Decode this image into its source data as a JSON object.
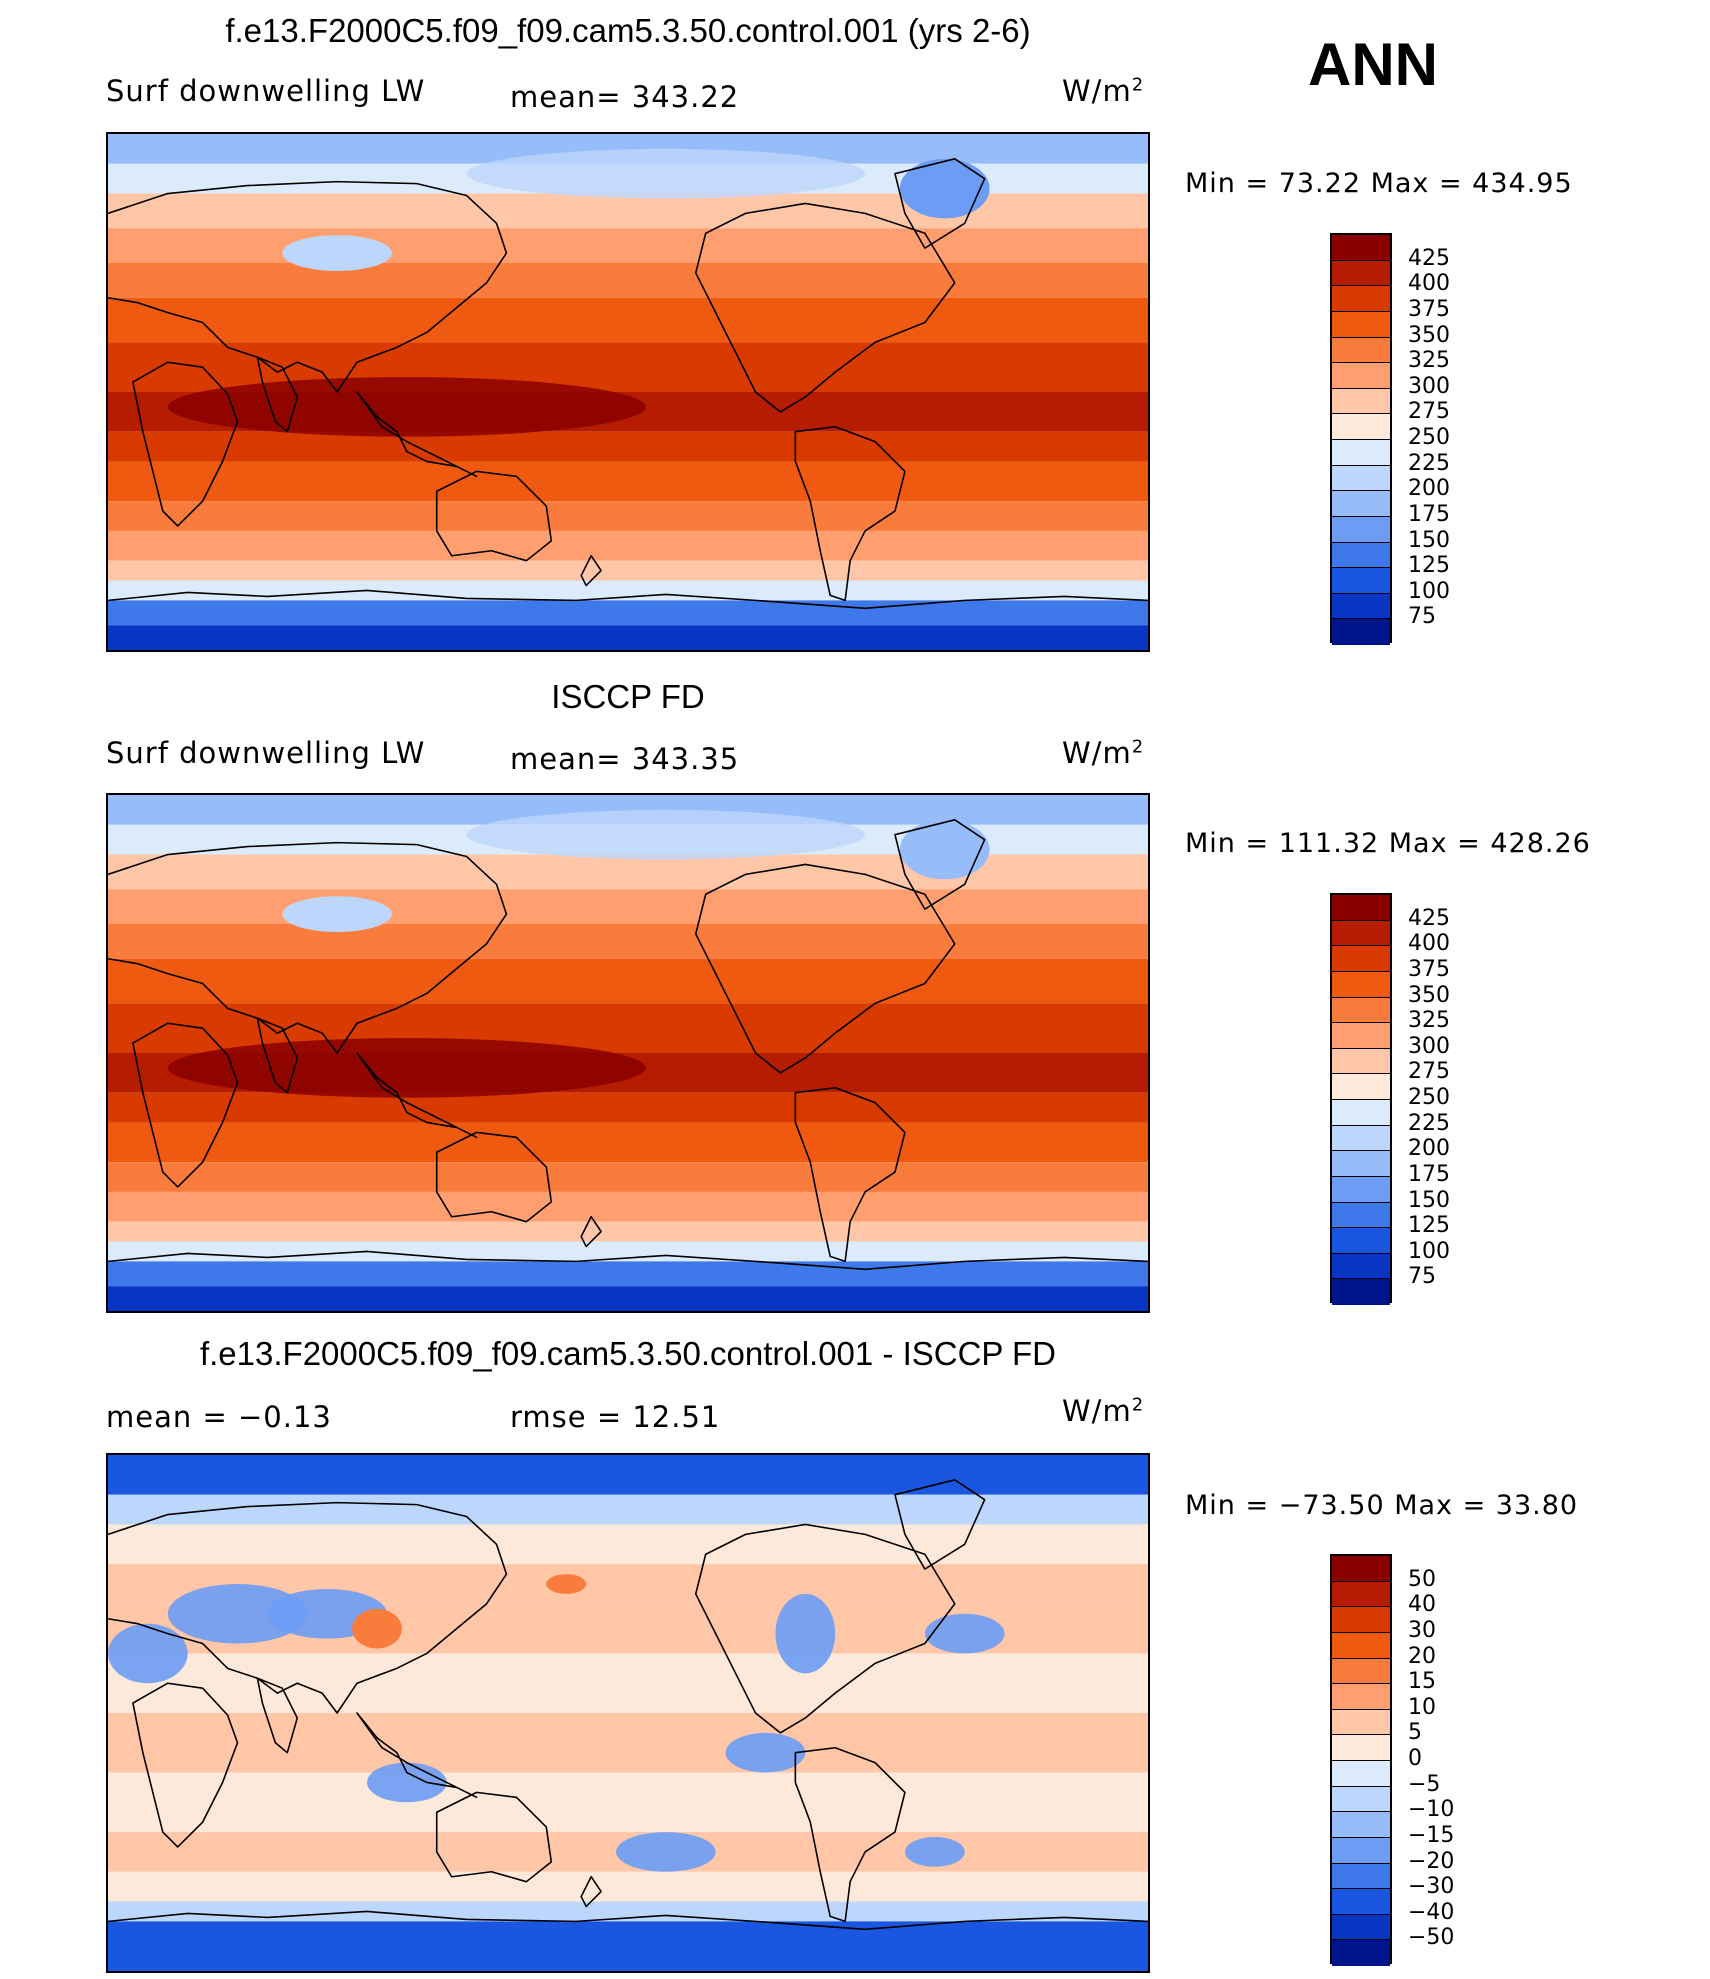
{
  "season": "ANN",
  "panels": [
    {
      "id": "model",
      "title": "f.e13.F2000C5.f09_f09.cam5.3.50.control.001 (yrs 2-6)",
      "variable": "Surf downwelling LW",
      "center_text": "mean= 343.22",
      "right_text": "W/m",
      "minmax": "Min =   73.22 Max = 434.95",
      "colorbar": {
        "labels": [
          "425",
          "400",
          "375",
          "350",
          "325",
          "300",
          "275",
          "250",
          "225",
          "200",
          "175",
          "150",
          "125",
          "100",
          "75"
        ],
        "colors": [
          "#8a0000",
          "#b51c00",
          "#d93a00",
          "#f05a10",
          "#fa7c3c",
          "#ff9f70",
          "#ffc6a8",
          "#fde9da",
          "#dcebfb",
          "#bdd6fb",
          "#96bcfa",
          "#6c9cf4",
          "#3e78eb",
          "#1b56e0",
          "#0836c2",
          "#00158c"
        ]
      }
    },
    {
      "id": "obs",
      "title": "ISCCP FD",
      "variable": "Surf downwelling LW",
      "center_text": "mean= 343.35",
      "right_text": "W/m",
      "minmax": "Min = 111.32 Max = 428.26",
      "colorbar": {
        "labels": [
          "425",
          "400",
          "375",
          "350",
          "325",
          "300",
          "275",
          "250",
          "225",
          "200",
          "175",
          "150",
          "125",
          "100",
          "75"
        ],
        "colors": [
          "#8a0000",
          "#b51c00",
          "#d93a00",
          "#f05a10",
          "#fa7c3c",
          "#ff9f70",
          "#ffc6a8",
          "#fde9da",
          "#dcebfb",
          "#bdd6fb",
          "#96bcfa",
          "#6c9cf4",
          "#3e78eb",
          "#1b56e0",
          "#0836c2",
          "#00158c"
        ]
      }
    },
    {
      "id": "diff",
      "title": "f.e13.F2000C5.f09_f09.cam5.3.50.control.001 - ISCCP FD",
      "variable": "mean =   −0.13",
      "center_text": "rmse =   12.51",
      "right_text": "W/m",
      "minmax": "Min = −73.50 Max =   33.80",
      "colorbar": {
        "labels": [
          "50",
          "40",
          "30",
          "20",
          "15",
          "10",
          "5",
          "0",
          "−5",
          "−10",
          "−15",
          "−20",
          "−30",
          "−40",
          "−50"
        ],
        "colors": [
          "#8a0000",
          "#b51c00",
          "#d93a00",
          "#f05a10",
          "#fa7c3c",
          "#ff9f70",
          "#ffc6a8",
          "#fde9da",
          "#dcebfb",
          "#bdd6fb",
          "#96bcfa",
          "#6c9cf4",
          "#3e78eb",
          "#1b56e0",
          "#0836c2",
          "#00158c"
        ]
      }
    }
  ],
  "chart_data": [
    {
      "type": "heatmap",
      "title": "f.e13.F2000C5.f09_f09.cam5.3.50.control.001 (yrs 2-6)",
      "variable": "Surf downwelling LW",
      "units": "W/m2",
      "mean": 343.22,
      "min": 73.22,
      "max": 434.95,
      "contour_levels": [
        75,
        100,
        125,
        150,
        175,
        200,
        225,
        250,
        275,
        300,
        325,
        350,
        375,
        400,
        425
      ]
    },
    {
      "type": "heatmap",
      "title": "ISCCP FD",
      "variable": "Surf downwelling LW",
      "units": "W/m2",
      "mean": 343.35,
      "min": 111.32,
      "max": 428.26,
      "contour_levels": [
        75,
        100,
        125,
        150,
        175,
        200,
        225,
        250,
        275,
        300,
        325,
        350,
        375,
        400,
        425
      ]
    },
    {
      "type": "heatmap",
      "title": "f.e13.F2000C5.f09_f09.cam5.3.50.control.001 - ISCCP FD",
      "units": "W/m2",
      "mean": -0.13,
      "rmse": 12.51,
      "min": -73.5,
      "max": 33.8,
      "contour_levels": [
        -50,
        -40,
        -30,
        -20,
        -15,
        -10,
        -5,
        0,
        5,
        10,
        15,
        20,
        30,
        40,
        50
      ]
    }
  ]
}
